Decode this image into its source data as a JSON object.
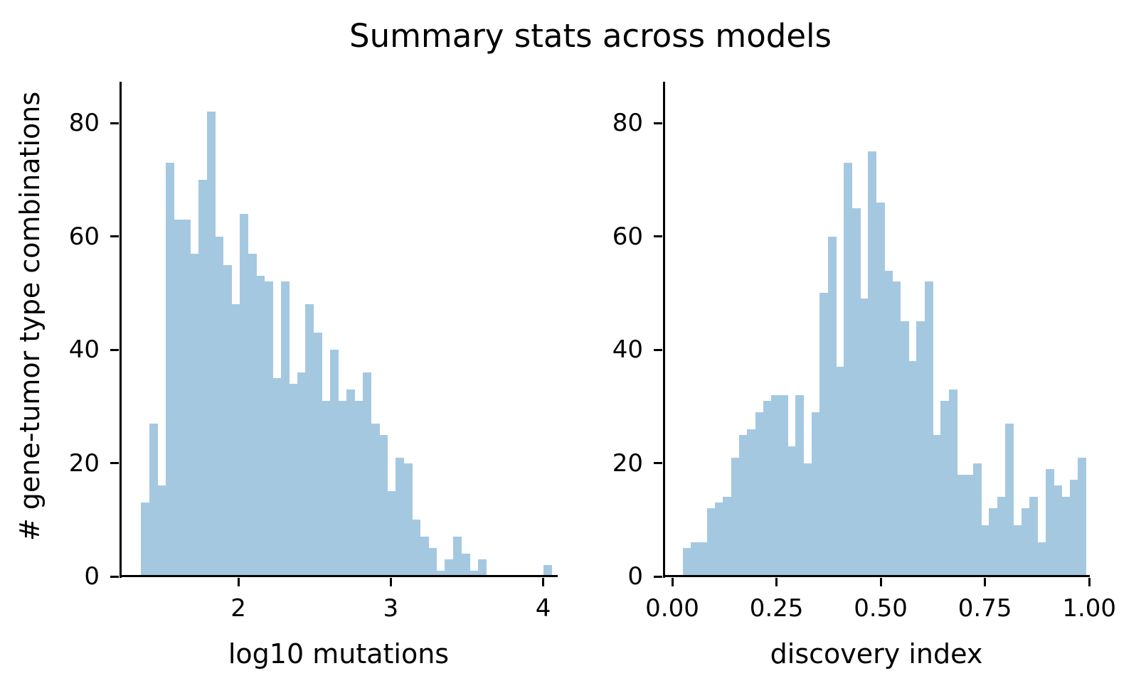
{
  "title": "Summary stats across models",
  "y_axis_label": "# gene-tumor type combinations",
  "bar_color": "#a5c8e1",
  "axis_color": "#000000",
  "chart_data": [
    {
      "type": "bar",
      "subtype": "histogram",
      "title": "Summary stats across models",
      "xlabel": "log10 mutations",
      "ylabel": "# gene-tumor type combinations",
      "legend": "none",
      "grid": false,
      "xlim": [
        1.2297,
        4.086
      ],
      "ylim": [
        0,
        87.3
      ],
      "bin_start": 1.3626,
      "bin_width": 0.05385,
      "n_bins": 50,
      "xticks": [
        {
          "value": 2,
          "label": "2"
        },
        {
          "value": 3,
          "label": "3"
        },
        {
          "value": 4,
          "label": "4"
        }
      ],
      "yticks": [
        {
          "value": 0,
          "label": "0"
        },
        {
          "value": 20,
          "label": "20"
        },
        {
          "value": 40,
          "label": "40"
        },
        {
          "value": 60,
          "label": "60"
        },
        {
          "value": 80,
          "label": "80"
        }
      ],
      "values": [
        13,
        27,
        16,
        73,
        63,
        63,
        57,
        70,
        82,
        60,
        55,
        48,
        64,
        57,
        53,
        52,
        35,
        52,
        34,
        36,
        48,
        43,
        31,
        40,
        31,
        33,
        31,
        36,
        27,
        25,
        15,
        21,
        20,
        10,
        7,
        5,
        1,
        3,
        7,
        4,
        1,
        3,
        0,
        0,
        0,
        0,
        0,
        0,
        0,
        2
      ]
    },
    {
      "type": "bar",
      "subtype": "histogram",
      "title": "Summary stats across models",
      "xlabel": "discovery index",
      "ylabel": "# gene-tumor type combinations",
      "legend": "none",
      "grid": false,
      "xlim": [
        -0.0188,
        0.998
      ],
      "ylim": [
        0,
        87.3
      ],
      "bin_start": 0.0251,
      "bin_width": 0.019335,
      "n_bins": 50,
      "xticks": [
        {
          "value": 0.0,
          "label": "0.00"
        },
        {
          "value": 0.25,
          "label": "0.25"
        },
        {
          "value": 0.5,
          "label": "0.50"
        },
        {
          "value": 0.75,
          "label": "0.75"
        },
        {
          "value": 1.0,
          "label": "1.00"
        }
      ],
      "yticks": [
        {
          "value": 0,
          "label": "0"
        },
        {
          "value": 20,
          "label": "20"
        },
        {
          "value": 40,
          "label": "40"
        },
        {
          "value": 60,
          "label": "60"
        },
        {
          "value": 80,
          "label": "80"
        }
      ],
      "values": [
        5,
        6,
        6,
        12,
        13,
        14,
        21,
        25,
        26,
        29,
        31,
        32,
        32,
        23,
        32,
        20,
        29,
        50,
        60,
        37,
        73,
        65,
        49,
        75,
        66,
        54,
        52,
        45,
        38,
        45,
        52,
        25,
        31,
        33,
        18,
        18,
        20,
        9,
        12,
        14,
        27,
        9,
        12,
        14,
        6,
        19,
        16,
        14,
        17,
        21
      ]
    }
  ]
}
